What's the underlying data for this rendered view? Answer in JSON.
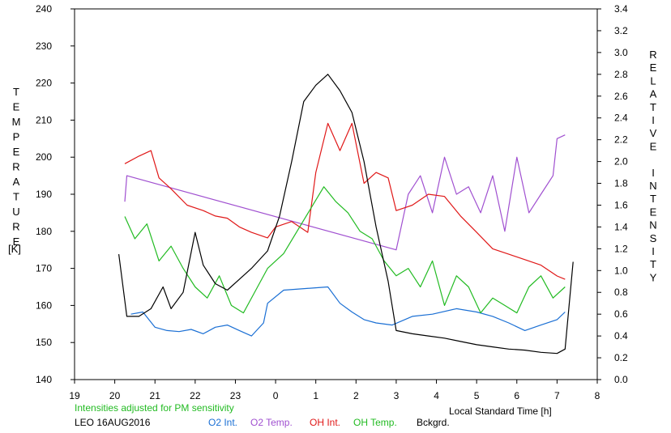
{
  "chart_data": {
    "type": "line",
    "left_axis": {
      "label": "TEMPERATURE",
      "unit": "[K]",
      "min": 140,
      "max": 240,
      "step": 10,
      "ticks": [
        "140",
        "150",
        "160",
        "170",
        "180",
        "190",
        "200",
        "210",
        "220",
        "230",
        "240"
      ]
    },
    "right_axis": {
      "label": "RELATIVE INTENSITY",
      "min": 0.0,
      "max": 3.4,
      "step": 0.2,
      "ticks": [
        "0.0",
        "0.2",
        "0.4",
        "0.6",
        "0.8",
        "1.0",
        "1.2",
        "1.4",
        "1.6",
        "1.8",
        "2.0",
        "2.2",
        "2.4",
        "2.6",
        "2.8",
        "3.0",
        "3.2",
        "3.4"
      ]
    },
    "x_axis": {
      "label": "Local Standard Time [h]",
      "min": 19,
      "max": 32,
      "ticks": [
        "19",
        "20",
        "21",
        "22",
        "23",
        "0",
        "1",
        "2",
        "3",
        "4",
        "5",
        "6",
        "7",
        "8"
      ]
    },
    "note": "Intensities adjusted for PM sensitivity",
    "station": "LEO 16AUG2016",
    "grid": false,
    "series": [
      {
        "name": "O2 Int.",
        "color": "#1a6fd4",
        "axis": "right",
        "x": [
          20.4,
          20.7,
          21.0,
          21.3,
          21.6,
          21.9,
          22.2,
          22.5,
          22.8,
          23.1,
          23.4,
          23.7,
          23.8,
          24.2,
          25.3,
          25.6,
          25.9,
          26.2,
          26.5,
          26.9,
          27.4,
          27.9,
          28.5,
          29.0,
          29.4,
          29.8,
          30.2,
          30.6,
          31.0,
          31.2
        ],
        "y": [
          0.6,
          0.62,
          0.48,
          0.45,
          0.44,
          0.46,
          0.42,
          0.48,
          0.5,
          0.45,
          0.4,
          0.52,
          0.7,
          0.82,
          0.85,
          0.7,
          0.62,
          0.55,
          0.52,
          0.5,
          0.58,
          0.6,
          0.65,
          0.62,
          0.58,
          0.52,
          0.45,
          0.5,
          0.55,
          0.62
        ]
      },
      {
        "name": "O2 Temp.",
        "color": "#a050d0",
        "axis": "left",
        "x": [
          20.25,
          20.3,
          27.0,
          27.3,
          27.6,
          27.9,
          28.2,
          28.5,
          28.8,
          29.1,
          29.4,
          29.7,
          30.0,
          30.3,
          30.6,
          30.9,
          31.0,
          31.2
        ],
        "y": [
          188,
          195,
          175,
          190,
          195,
          185,
          200,
          190,
          192,
          185,
          195,
          180,
          200,
          185,
          190,
          195,
          205,
          206
        ]
      },
      {
        "name": "OH Int.",
        "color": "#e01818",
        "axis": "right",
        "x": [
          20.25,
          20.6,
          20.9,
          21.1,
          21.4,
          21.8,
          22.2,
          22.5,
          22.8,
          23.1,
          23.4,
          23.8,
          24.0,
          24.4,
          24.8,
          25.0,
          25.3,
          25.6,
          25.9,
          26.2,
          26.5,
          26.8,
          27.0,
          27.4,
          27.8,
          28.2,
          28.6,
          29.0,
          29.4,
          29.8,
          30.2,
          30.6,
          31.0,
          31.2
        ],
        "y": [
          1.98,
          2.05,
          2.1,
          1.85,
          1.75,
          1.6,
          1.55,
          1.5,
          1.48,
          1.4,
          1.35,
          1.3,
          1.4,
          1.45,
          1.35,
          1.9,
          2.35,
          2.1,
          2.35,
          1.8,
          1.9,
          1.85,
          1.55,
          1.6,
          1.7,
          1.68,
          1.5,
          1.35,
          1.2,
          1.15,
          1.1,
          1.05,
          0.95,
          0.92
        ]
      },
      {
        "name": "OH Temp.",
        "color": "#22bb22",
        "axis": "left",
        "x": [
          20.25,
          20.5,
          20.8,
          21.1,
          21.4,
          21.7,
          22.0,
          22.3,
          22.6,
          22.9,
          23.2,
          23.5,
          23.8,
          24.2,
          25.2,
          25.5,
          25.8,
          26.1,
          26.4,
          26.7,
          27.0,
          27.3,
          27.6,
          27.9,
          28.2,
          28.5,
          28.8,
          29.1,
          29.4,
          29.7,
          30.0,
          30.3,
          30.6,
          30.9,
          31.2
        ],
        "y": [
          184,
          178,
          182,
          172,
          176,
          170,
          165,
          162,
          168,
          160,
          158,
          164,
          170,
          174,
          192,
          188,
          185,
          180,
          178,
          172,
          168,
          170,
          165,
          172,
          160,
          168,
          165,
          158,
          162,
          160,
          158,
          165,
          168,
          162,
          165
        ]
      },
      {
        "name": "Bckgrd.",
        "color": "#000000",
        "axis": "right",
        "x": [
          20.1,
          20.3,
          20.6,
          20.9,
          21.2,
          21.4,
          21.7,
          22.0,
          22.2,
          22.5,
          22.8,
          23.1,
          23.4,
          23.8,
          24.1,
          24.4,
          24.7,
          25.0,
          25.3,
          25.6,
          25.9,
          26.2,
          26.5,
          26.8,
          27.0,
          27.4,
          27.8,
          28.2,
          28.6,
          29.0,
          29.4,
          29.8,
          30.2,
          30.6,
          31.0,
          31.2,
          31.4
        ],
        "y": [
          1.15,
          0.58,
          0.58,
          0.65,
          0.85,
          0.65,
          0.8,
          1.35,
          1.05,
          0.88,
          0.82,
          0.92,
          1.02,
          1.18,
          1.5,
          2.0,
          2.55,
          2.7,
          2.8,
          2.65,
          2.45,
          2.0,
          1.4,
          0.9,
          0.45,
          0.42,
          0.4,
          0.38,
          0.35,
          0.32,
          0.3,
          0.28,
          0.27,
          0.25,
          0.24,
          0.28,
          1.08
        ]
      }
    ]
  }
}
